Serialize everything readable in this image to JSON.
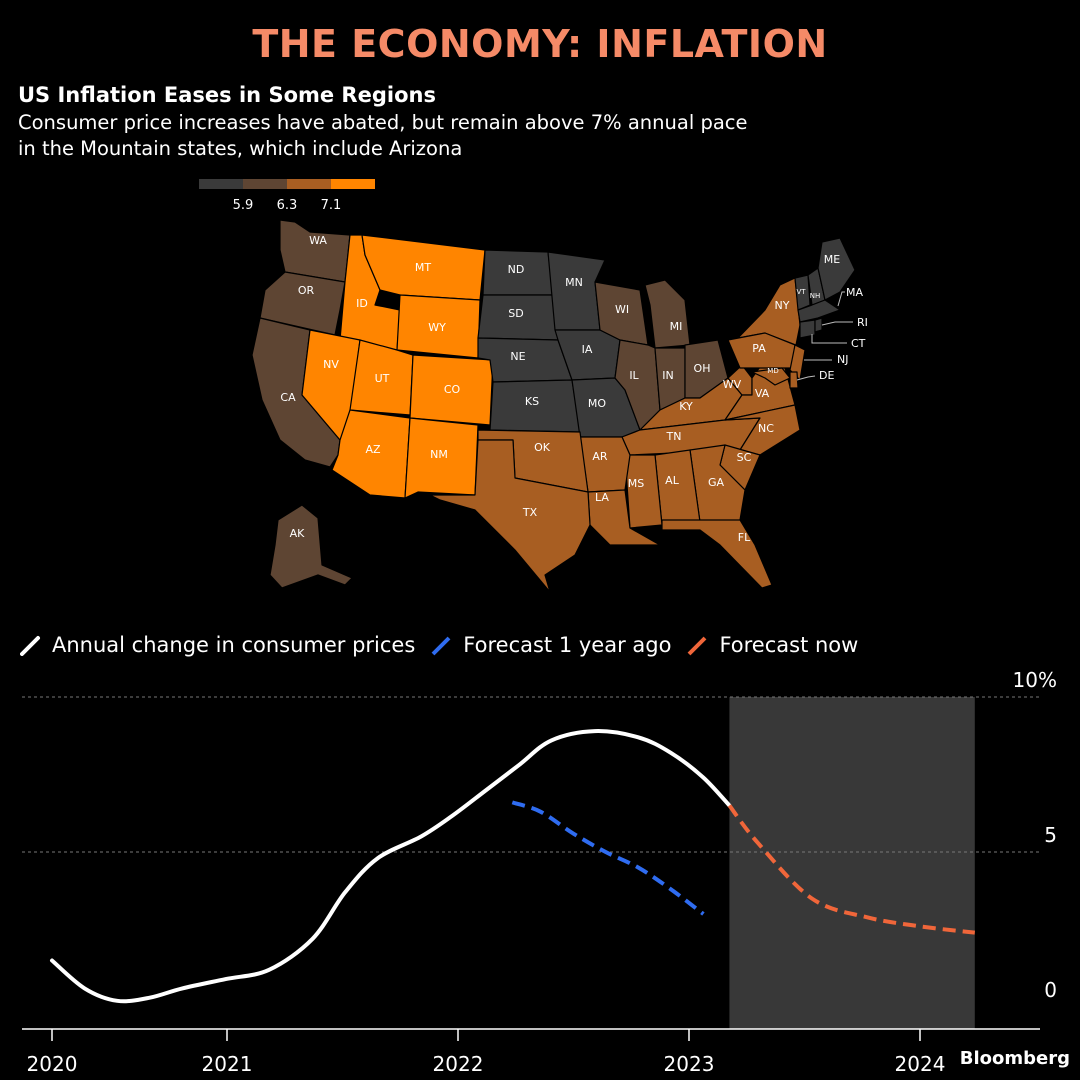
{
  "header": {
    "banner": "THE ECONOMY: INFLATION",
    "title": "US Inflation Eases in Some Regions",
    "subtitle_line1": "Consumer price increases have abated, but remain above 7% annual pace",
    "subtitle_line2": "in the Mountain states, which include Arizona"
  },
  "colors": {
    "banner": "#f58a67",
    "bin_low": "#3a3a3a",
    "bin_mid": "#5e4533",
    "bin_high": "#a85e22",
    "bin_top": "#ff8500",
    "border": "#000000",
    "actual": "#ffffff",
    "forecast_year_ago": "#2f6cf0",
    "forecast_now": "#f0663a",
    "shade": "#383838",
    "grid": "#777777"
  },
  "map_legend": {
    "thresholds": [
      "5.9",
      "6.3",
      "7.1"
    ]
  },
  "map_data": {
    "WA": 1,
    "OR": 1,
    "CA": 1,
    "AK": 1,
    "ID": 3,
    "MT": 3,
    "WY": 3,
    "NV": 3,
    "UT": 3,
    "CO": 3,
    "AZ": 3,
    "NM": 3,
    "ND": 0,
    "SD": 0,
    "NE": 0,
    "KS": 0,
    "MN": 0,
    "IA": 0,
    "MO": 0,
    "WI": 1,
    "MI": 1,
    "IL": 1,
    "IN": 1,
    "OH": 1,
    "TX": 2,
    "OK": 2,
    "AR": 2,
    "LA": 2,
    "MS": 2,
    "AL": 2,
    "TN": 2,
    "KY": 2,
    "GA": 2,
    "FL": 2,
    "SC": 2,
    "NC": 2,
    "VA": 2,
    "WV": 2,
    "MD": 2,
    "DE": 2,
    "NJ": 2,
    "PA": 2,
    "NY": 2,
    "ME": 0,
    "VT": 0,
    "NH": 0,
    "MA": 0,
    "RI": 0,
    "CT": 0
  },
  "chart_data": {
    "type": "line",
    "x_ticks": [
      "2020",
      "2021",
      "2022",
      "2023",
      "2024"
    ],
    "y_ticks": [
      "0",
      "5",
      "10%"
    ],
    "ylim": [
      0,
      10
    ],
    "xlim": [
      2020,
      2024.5
    ],
    "forecast_region": [
      2023.12,
      2024.25
    ],
    "grid_lines": [
      5,
      10
    ],
    "series": [
      {
        "name": "Annual change in consumer prices",
        "style": "solid",
        "points": [
          [
            2020.0,
            1.5
          ],
          [
            2020.15,
            0.6
          ],
          [
            2020.3,
            0.2
          ],
          [
            2020.45,
            0.3
          ],
          [
            2020.6,
            0.6
          ],
          [
            2020.8,
            0.9
          ],
          [
            2021.0,
            1.2
          ],
          [
            2021.2,
            2.2
          ],
          [
            2021.35,
            3.7
          ],
          [
            2021.5,
            4.8
          ],
          [
            2021.7,
            5.5
          ],
          [
            2021.85,
            6.2
          ],
          [
            2022.0,
            7.0
          ],
          [
            2022.15,
            7.8
          ],
          [
            2022.3,
            8.6
          ],
          [
            2022.5,
            8.9
          ],
          [
            2022.7,
            8.7
          ],
          [
            2022.85,
            8.2
          ],
          [
            2023.0,
            7.4
          ],
          [
            2023.12,
            6.5
          ]
        ]
      },
      {
        "name": "Forecast 1 year ago",
        "style": "dashed",
        "points": [
          [
            2022.12,
            6.6
          ],
          [
            2022.25,
            6.3
          ],
          [
            2022.4,
            5.6
          ],
          [
            2022.55,
            5.0
          ],
          [
            2022.7,
            4.5
          ],
          [
            2022.85,
            3.8
          ],
          [
            2023.0,
            3.0
          ]
        ]
      },
      {
        "name": "Forecast now",
        "style": "dashed",
        "points": [
          [
            2023.12,
            6.5
          ],
          [
            2023.25,
            5.3
          ],
          [
            2023.5,
            3.5
          ],
          [
            2023.75,
            2.9
          ],
          [
            2024.0,
            2.6
          ],
          [
            2024.25,
            2.4
          ]
        ]
      }
    ]
  },
  "source": "Bloomberg"
}
